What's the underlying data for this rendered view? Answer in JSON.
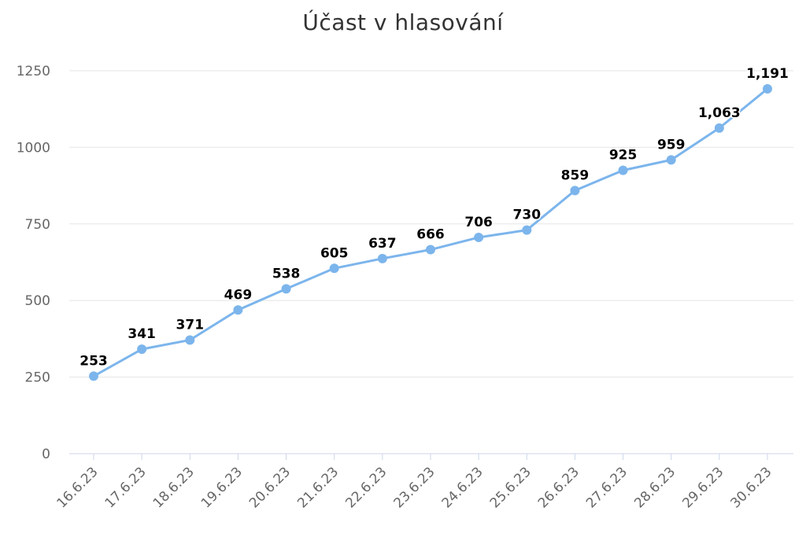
{
  "chart_data": {
    "type": "line",
    "title": "Účast v hlasování",
    "xlabel": "",
    "ylabel": "",
    "categories": [
      "16.6.23",
      "17.6.23",
      "18.6.23",
      "19.6.23",
      "20.6.23",
      "21.6.23",
      "22.6.23",
      "23.6.23",
      "24.6.23",
      "25.6.23",
      "26.6.23",
      "27.6.23",
      "28.6.23",
      "29.6.23",
      "30.6.23"
    ],
    "series": [
      {
        "values": [
          253,
          341,
          371,
          469,
          538,
          605,
          637,
          666,
          706,
          730,
          859,
          925,
          959,
          1063,
          1191
        ],
        "data_labels": [
          "253",
          "341",
          "371",
          "469",
          "538",
          "605",
          "637",
          "666",
          "706",
          "730",
          "859",
          "925",
          "959",
          "1,063",
          "1,191"
        ],
        "color": "#7cb5ec"
      }
    ],
    "ylim": [
      0,
      1250
    ],
    "yticks": [
      0,
      250,
      500,
      750,
      1000,
      1250
    ],
    "grid": true,
    "legend": "none",
    "colors": {
      "line": "#7cb5ec",
      "grid": "#e6e6e6",
      "axis": "#ccd6eb"
    }
  }
}
